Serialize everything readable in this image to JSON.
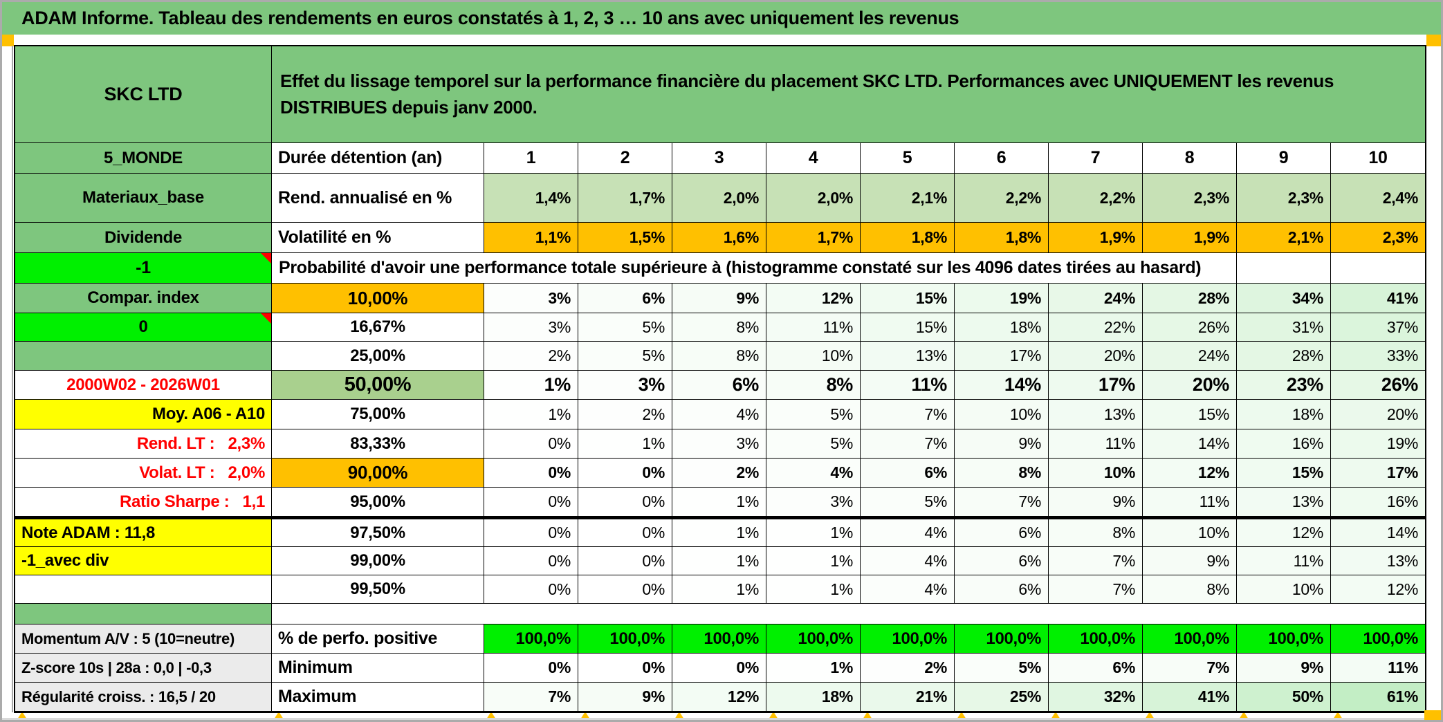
{
  "banner": {
    "title": "ADAM Informe. Tableau des rendements en euros constatés à 1, 2, 3 … 10 ans avec uniquement les revenus"
  },
  "header": {
    "entity": "SKC LTD",
    "description": "Effet du lissage temporel sur la performance financière du placement SKC LTD. Performances avec UNIQUEMENT les revenus DISTRIBUES depuis janv 2000."
  },
  "labels": {
    "monde": "5_MONDE"
  },
  "columns": {
    "label": "Durée détention (an)",
    "durations": [
      "1",
      "2",
      "3",
      "4",
      "5",
      "6",
      "7",
      "8",
      "9",
      "10"
    ]
  },
  "measures": {
    "rows": [
      {
        "a": "Materiaux_base",
        "label": "Rend. annualisé en %",
        "cell_bg": "#C7E1B6",
        "values": [
          "1,4%",
          "1,7%",
          "2,0%",
          "2,0%",
          "2,1%",
          "2,2%",
          "2,2%",
          "2,3%",
          "2,3%",
          "2,4%"
        ]
      },
      {
        "a": "Dividende",
        "label": "Volatilité en %",
        "cell_bg": "#FFC000",
        "values": [
          "1,1%",
          "1,5%",
          "1,6%",
          "1,7%",
          "1,8%",
          "1,8%",
          "1,9%",
          "1,9%",
          "2,1%",
          "2,3%"
        ]
      }
    ]
  },
  "probability": {
    "corner_label": "-1",
    "header": "Probabilité d'avoir une performance totale supérieure à (histogramme constaté sur les 4096 dates tirées au hasard)",
    "rows": [
      {
        "a": "Compar. index",
        "a_style": "green",
        "threshold": "10,00%",
        "b_style": "orange",
        "bold": true,
        "values": [
          "3%",
          "6%",
          "9%",
          "12%",
          "15%",
          "19%",
          "24%",
          "28%",
          "34%",
          "41%"
        ]
      },
      {
        "a": "0",
        "a_style": "bright",
        "a_note": true,
        "threshold": "16,67%",
        "values": [
          "3%",
          "5%",
          "8%",
          "11%",
          "15%",
          "18%",
          "22%",
          "26%",
          "31%",
          "37%"
        ]
      },
      {
        "a": "",
        "a_style": "green",
        "threshold": "25,00%",
        "values": [
          "2%",
          "5%",
          "8%",
          "10%",
          "13%",
          "17%",
          "20%",
          "24%",
          "28%",
          "33%"
        ]
      },
      {
        "a": "2000W02 - 2026W01",
        "a_style": "red",
        "threshold": "50,00%",
        "b_style": "sage",
        "bold": true,
        "big": true,
        "values": [
          "1%",
          "3%",
          "6%",
          "8%",
          "11%",
          "14%",
          "17%",
          "20%",
          "23%",
          "26%"
        ]
      },
      {
        "a": "Moy. A06 - A10",
        "a_style": "yellow",
        "a_align": "right",
        "threshold": "75,00%",
        "values": [
          "1%",
          "2%",
          "4%",
          "5%",
          "7%",
          "10%",
          "13%",
          "15%",
          "18%",
          "20%"
        ]
      },
      {
        "a": "Rend. LT :   2,3%",
        "a_style": "red",
        "a_align": "right",
        "threshold": "83,33%",
        "values": [
          "0%",
          "1%",
          "3%",
          "5%",
          "7%",
          "9%",
          "11%",
          "14%",
          "16%",
          "19%"
        ]
      },
      {
        "a": "Volat. LT :   2,0%",
        "a_style": "red",
        "a_align": "right",
        "threshold": "90,00%",
        "b_style": "orange",
        "bold": true,
        "values": [
          "0%",
          "0%",
          "2%",
          "4%",
          "6%",
          "8%",
          "10%",
          "12%",
          "15%",
          "17%"
        ]
      },
      {
        "a": "Ratio Sharpe :   1,1",
        "a_style": "red",
        "a_align": "right",
        "threshold": "95,00%",
        "values": [
          "0%",
          "0%",
          "1%",
          "3%",
          "5%",
          "7%",
          "9%",
          "11%",
          "13%",
          "16%"
        ]
      },
      {
        "a": "Note ADAM : 11,8",
        "a_style": "yellow",
        "a_align": "left",
        "threshold": "97,50%",
        "thick_top": true,
        "values": [
          "0%",
          "0%",
          "1%",
          "1%",
          "4%",
          "6%",
          "8%",
          "10%",
          "12%",
          "14%"
        ]
      },
      {
        "a": "-1_avec div",
        "a_style": "yellow",
        "a_align": "left",
        "threshold": "99,00%",
        "values": [
          "0%",
          "0%",
          "1%",
          "1%",
          "4%",
          "6%",
          "7%",
          "9%",
          "11%",
          "13%"
        ]
      },
      {
        "a": "",
        "a_style": "white",
        "threshold": "99,50%",
        "values": [
          "0%",
          "0%",
          "1%",
          "1%",
          "4%",
          "6%",
          "7%",
          "8%",
          "10%",
          "12%"
        ]
      }
    ]
  },
  "summary": {
    "rows": [
      {
        "a": "Momentum A/V : 5 (10=neutre)",
        "label": "% de perfo. positive",
        "style": "bright",
        "values": [
          "100,0%",
          "100,0%",
          "100,0%",
          "100,0%",
          "100,0%",
          "100,0%",
          "100,0%",
          "100,0%",
          "100,0%",
          "100,0%"
        ]
      },
      {
        "a": "Z-score 10s | 28a : 0,0 | -0,3",
        "label": "Minimum",
        "style": "scale",
        "values": [
          "0%",
          "0%",
          "0%",
          "1%",
          "2%",
          "5%",
          "6%",
          "7%",
          "9%",
          "11%"
        ]
      },
      {
        "a": "Régularité croiss. : 16,5 / 20",
        "label": "Maximum",
        "style": "scale",
        "values": [
          "7%",
          "9%",
          "12%",
          "18%",
          "21%",
          "25%",
          "32%",
          "41%",
          "50%",
          "61%"
        ]
      }
    ]
  },
  "colors": {
    "banner_green": "#7EC67E",
    "bright_green": "#00F000",
    "orange": "#FFC000",
    "yellow": "#FFFF00",
    "sage_green": "#A9D08E",
    "measure_green": "#C7E1B6",
    "grey_label": "#EBEBEB",
    "red_text": "#FF0000"
  }
}
